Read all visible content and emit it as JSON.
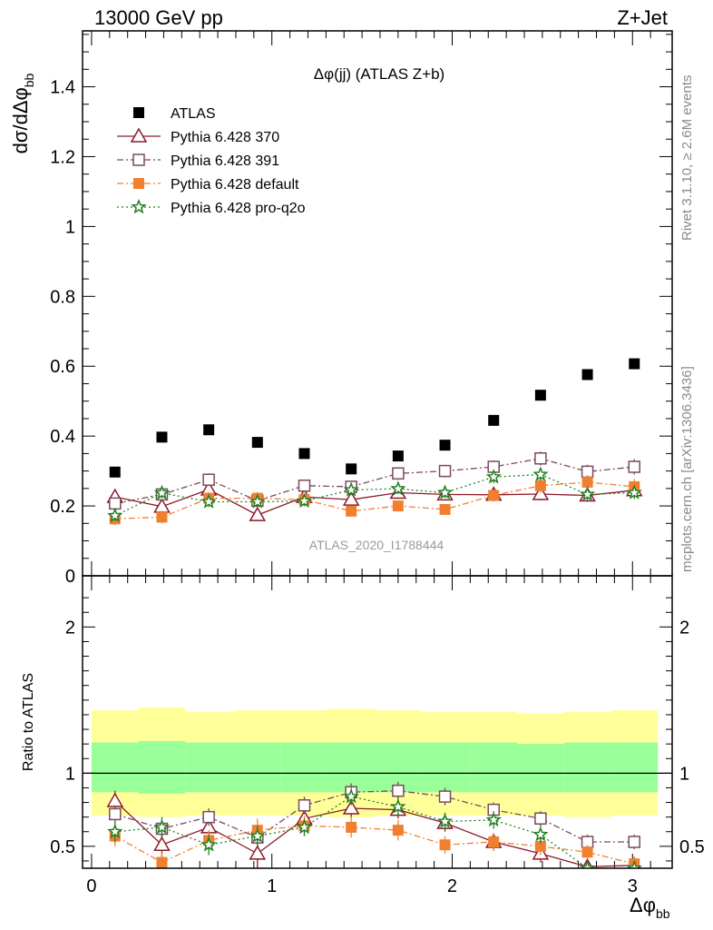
{
  "header": {
    "left_label": "13000 GeV pp",
    "right_label": "Z+Jet"
  },
  "side": {
    "rivet_label": "Rivet 3.1.10, ≥ 2.6M events",
    "mcplots_label": "mcplots.cern.ch [arXiv:1306.3436]"
  },
  "chart_data": [
    {
      "type": "scatter",
      "title": "Δφ(jj) (ATLAS Z+b)",
      "watermark": "ATLAS_2020_I1788444",
      "xlabel": "Δφbb",
      "ylabel": "dσ/dΔφbb",
      "xlim": [
        -0.05,
        3.22
      ],
      "ylim": [
        0,
        1.56
      ],
      "yticks": [
        0,
        0.2,
        0.4,
        0.6,
        0.8,
        1,
        1.2,
        1.4
      ],
      "ytick_labels": [
        "0",
        "0.2",
        "0.4",
        "0.6",
        "0.8",
        "1",
        "1.2",
        "1.4"
      ],
      "x": [
        0.13,
        0.39,
        0.65,
        0.92,
        1.18,
        1.44,
        1.7,
        1.96,
        2.23,
        2.49,
        2.75,
        3.01
      ],
      "legend_position": "top-left",
      "series": [
        {
          "name": "ATLAS",
          "color": "#000000",
          "marker": "filled-square",
          "values": [
            0.297,
            0.397,
            0.418,
            0.382,
            0.35,
            0.306,
            0.343,
            0.374,
            0.445,
            0.517,
            0.576,
            0.607
          ]
        },
        {
          "name": "Pythia 6.428 370",
          "color": "#8b1a28",
          "marker": "open-triangle",
          "line": "solid",
          "values": [
            0.226,
            0.198,
            0.247,
            0.174,
            0.226,
            0.218,
            0.238,
            0.233,
            0.232,
            0.234,
            0.23,
            0.245
          ],
          "errors": [
            0.018,
            0.018,
            0.018,
            0.018,
            0.015,
            0.015,
            0.015,
            0.015,
            0.015,
            0.018,
            0.018,
            0.02
          ]
        },
        {
          "name": "Pythia 6.428 391",
          "color": "#7b4a5e",
          "marker": "open-square",
          "line": "dashdot",
          "values": [
            0.207,
            0.233,
            0.275,
            0.215,
            0.258,
            0.255,
            0.293,
            0.3,
            0.312,
            0.336,
            0.298,
            0.312
          ],
          "errors": [
            0.015,
            0.015,
            0.018,
            0.015,
            0.015,
            0.015,
            0.018,
            0.018,
            0.018,
            0.02,
            0.02,
            0.022
          ]
        },
        {
          "name": "Pythia 6.428 default",
          "color": "#f08030",
          "marker": "filled-square",
          "line": "dashdot",
          "values": [
            0.163,
            0.168,
            0.222,
            0.222,
            0.218,
            0.185,
            0.2,
            0.19,
            0.23,
            0.258,
            0.268,
            0.255
          ],
          "errors": [
            0.018,
            0.018,
            0.018,
            0.018,
            0.018,
            0.015,
            0.015,
            0.015,
            0.018,
            0.02,
            0.02,
            0.022
          ]
        },
        {
          "name": "Pythia 6.428 pro-q2o",
          "color": "#208020",
          "marker": "open-star",
          "line": "dotted",
          "values": [
            0.172,
            0.237,
            0.212,
            0.212,
            0.214,
            0.246,
            0.249,
            0.238,
            0.283,
            0.29,
            0.233,
            0.238
          ],
          "errors": [
            0.015,
            0.015,
            0.015,
            0.015,
            0.015,
            0.015,
            0.015,
            0.015,
            0.018,
            0.018,
            0.018,
            0.018
          ]
        }
      ]
    },
    {
      "type": "scatter",
      "ylabel": "Ratio to ATLAS",
      "xlabel": "Δφbb",
      "xlim": [
        -0.05,
        3.22
      ],
      "ylim": [
        0.35,
        2.35
      ],
      "yticks": [
        0.5,
        1,
        2
      ],
      "ytick_labels": [
        "0.5",
        "1",
        "2"
      ],
      "xticks": [
        0,
        1,
        2,
        3
      ],
      "xtick_labels": [
        "0",
        "1",
        "2",
        "3"
      ],
      "reference_line": 1,
      "x": [
        0.13,
        0.39,
        0.65,
        0.92,
        1.18,
        1.44,
        1.7,
        1.96,
        2.23,
        2.49,
        2.75,
        3.01
      ],
      "band_edges": [
        0.0,
        0.26,
        0.52,
        0.79,
        1.05,
        1.31,
        1.57,
        1.83,
        2.1,
        2.36,
        2.62,
        2.88,
        3.14
      ],
      "uncertainty_bands": {
        "inner_color": "#99ff99",
        "outer_color": "#ffff99",
        "inner_low": [
          0.87,
          0.86,
          0.87,
          0.87,
          0.87,
          0.87,
          0.87,
          0.87,
          0.87,
          0.87,
          0.87,
          0.87
        ],
        "inner_high": [
          1.21,
          1.22,
          1.21,
          1.21,
          1.21,
          1.21,
          1.21,
          1.21,
          1.21,
          1.2,
          1.21,
          1.21
        ],
        "outer_low": [
          0.71,
          0.7,
          0.71,
          0.71,
          0.71,
          0.7,
          0.71,
          0.71,
          0.71,
          0.71,
          0.7,
          0.71
        ],
        "outer_high": [
          1.43,
          1.45,
          1.42,
          1.43,
          1.43,
          1.44,
          1.43,
          1.42,
          1.42,
          1.41,
          1.42,
          1.43
        ]
      },
      "series": [
        {
          "name": "Pythia 6.428 370",
          "color": "#8b1a28",
          "marker": "open-triangle",
          "line": "solid",
          "values": [
            0.81,
            0.51,
            0.63,
            0.45,
            0.69,
            0.76,
            0.75,
            0.66,
            0.53,
            0.45,
            0.36,
            0.37
          ],
          "errors": [
            0.07,
            0.08,
            0.07,
            0.1,
            0.06,
            0.06,
            0.06,
            0.06,
            0.06,
            0.06,
            0.05,
            0.05
          ]
        },
        {
          "name": "Pythia 6.428 391",
          "color": "#7b4a5e",
          "marker": "open-square",
          "line": "dashdot",
          "values": [
            0.72,
            0.62,
            0.7,
            0.56,
            0.78,
            0.87,
            0.88,
            0.84,
            0.75,
            0.69,
            0.53,
            0.53
          ],
          "errors": [
            0.06,
            0.06,
            0.06,
            0.06,
            0.06,
            0.06,
            0.06,
            0.06,
            0.05,
            0.05,
            0.05,
            0.05
          ]
        },
        {
          "name": "Pythia 6.428 default",
          "color": "#f08030",
          "marker": "filled-square",
          "line": "dashdot",
          "values": [
            0.57,
            0.39,
            0.54,
            0.61,
            0.64,
            0.63,
            0.61,
            0.51,
            0.53,
            0.5,
            0.46,
            0.38
          ],
          "errors": [
            0.07,
            0.07,
            0.07,
            0.08,
            0.07,
            0.07,
            0.07,
            0.06,
            0.06,
            0.06,
            0.05,
            0.05
          ]
        },
        {
          "name": "Pythia 6.428 pro-q2o",
          "color": "#208020",
          "marker": "open-star",
          "line": "dotted",
          "values": [
            0.6,
            0.63,
            0.51,
            0.57,
            0.63,
            0.84,
            0.77,
            0.67,
            0.68,
            0.58,
            0.35,
            0.35
          ],
          "errors": [
            0.07,
            0.07,
            0.07,
            0.07,
            0.06,
            0.06,
            0.06,
            0.06,
            0.06,
            0.06,
            0.05,
            0.05
          ]
        }
      ]
    }
  ]
}
